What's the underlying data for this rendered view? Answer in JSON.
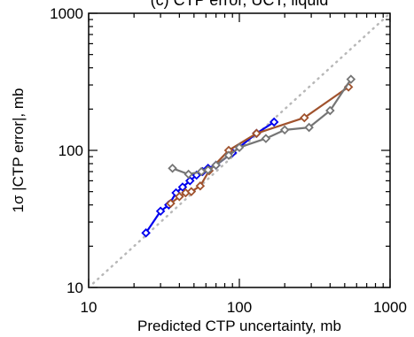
{
  "chart_data": {
    "type": "line",
    "title": "(c) CTP error, UCT, liquid",
    "xlabel": "Predicted CTP uncertainty, mb",
    "ylabel": "1σ |CTP error|, mb",
    "xscale": "log",
    "yscale": "log",
    "xlim": [
      10,
      1000
    ],
    "ylim": [
      10,
      1000
    ],
    "xticks": [
      "10",
      "100",
      "1000"
    ],
    "yticks": [
      "10",
      "100",
      "1000"
    ],
    "grid": false,
    "legend": "none",
    "reference_line": {
      "style": "dotted",
      "color": "#b8b8b8",
      "x": [
        10,
        1000
      ],
      "y": [
        10,
        1000
      ]
    },
    "series": [
      {
        "color": "#0000ee",
        "marker": "diamond",
        "x": [
          24,
          30,
          34,
          38,
          42,
          47,
          52,
          57,
          62,
          70,
          90,
          130,
          170
        ],
        "y": [
          25,
          36,
          40,
          49,
          54,
          60,
          66,
          70,
          74,
          78,
          96,
          133,
          161
        ]
      },
      {
        "color": "#a0522d",
        "marker": "diamond",
        "x": [
          35,
          40,
          44,
          48,
          55,
          63,
          85,
          130,
          270,
          530
        ],
        "y": [
          41,
          46,
          49,
          50,
          55,
          71,
          100,
          133,
          173,
          290
        ]
      },
      {
        "color": "#757575",
        "marker": "diamond",
        "x": [
          36,
          46,
          56,
          62,
          70,
          85,
          100,
          150,
          200,
          290,
          400,
          550
        ],
        "y": [
          74,
          67,
          70,
          72,
          78,
          92,
          105,
          122,
          141,
          147,
          195,
          330
        ]
      }
    ]
  }
}
